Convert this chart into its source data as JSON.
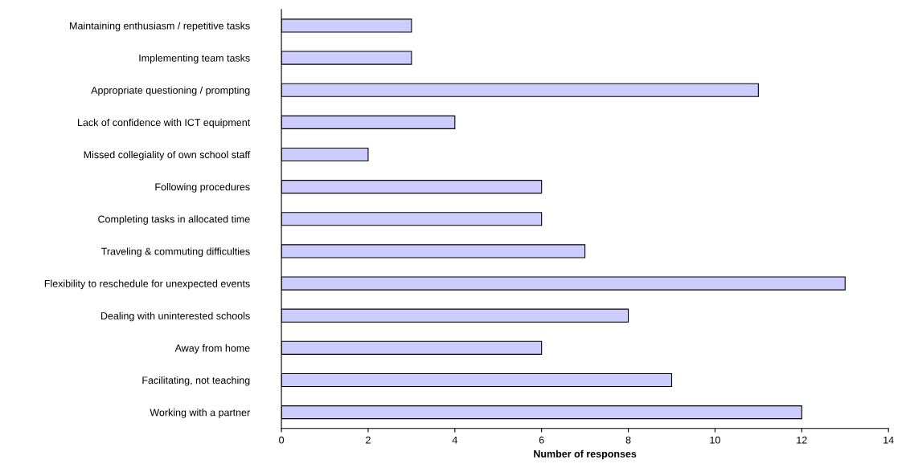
{
  "chart_data": {
    "type": "bar",
    "orientation": "horizontal",
    "xlabel": "Number of responses",
    "categories": [
      "Maintaining enthusiasm / repetitive tasks",
      "Implementing team tasks",
      "Appropriate questioning / prompting",
      "Lack of confidence with ICT equipment",
      "Missed collegiality of own school staff",
      "Following procedures",
      "Completing tasks in allocated time",
      "Traveling & commuting difficulties",
      "Flexibility to reschedule for unexpected events",
      "Dealing with uninterested schools",
      "Away from home",
      "Facilitating, not teaching",
      "Working with a partner"
    ],
    "values": [
      3,
      3,
      11,
      4,
      2,
      6,
      6,
      7,
      13,
      8,
      6,
      9,
      12
    ],
    "color": "#ccccff",
    "xlim": [
      0,
      14
    ],
    "xticks": [
      0,
      2,
      4,
      6,
      8,
      10,
      12,
      14
    ],
    "grid": false,
    "legend": false
  }
}
